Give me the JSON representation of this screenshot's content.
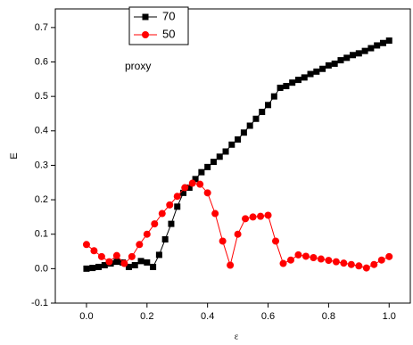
{
  "chart_data": {
    "type": "line",
    "x_label": "ε",
    "y_label": "E",
    "annotation": "proxy",
    "xlim": [
      -0.103,
      1.07
    ],
    "ylim": [
      -0.1,
      0.754
    ],
    "xticks": [
      {
        "value": 0,
        "label": "0.0"
      },
      0.2,
      0.4,
      0.6,
      0.8,
      {
        "value": 1,
        "label": "1.0"
      }
    ],
    "yticks": [
      -0.1,
      {
        "value": 0,
        "label": "0.0"
      },
      0.1,
      0.2,
      0.3,
      0.4,
      0.5,
      0.6,
      0.7
    ],
    "series": [
      {
        "name": "70",
        "color": "#000000",
        "marker": "square",
        "x": [
          0,
          0.02,
          0.04,
          0.06,
          0.08,
          0.1,
          0.12,
          0.14,
          0.16,
          0.18,
          0.2,
          0.22,
          0.24,
          0.26,
          0.28,
          0.3,
          0.32,
          0.34,
          0.36,
          0.38,
          0.4,
          0.42,
          0.44,
          0.46,
          0.48,
          0.5,
          0.52,
          0.54,
          0.56,
          0.58,
          0.6,
          0.62,
          0.64,
          0.66,
          0.68,
          0.7,
          0.72,
          0.74,
          0.76,
          0.78,
          0.8,
          0.82,
          0.84,
          0.86,
          0.88,
          0.9,
          0.92,
          0.94,
          0.96,
          0.98,
          1
        ],
        "values": [
          0,
          0.002,
          0.005,
          0.01,
          0.015,
          0.02,
          0.018,
          0.005,
          0.01,
          0.022,
          0.018,
          0.005,
          0.04,
          0.085,
          0.13,
          0.18,
          0.22,
          0.235,
          0.26,
          0.28,
          0.295,
          0.31,
          0.325,
          0.34,
          0.36,
          0.375,
          0.395,
          0.415,
          0.435,
          0.455,
          0.475,
          0.5,
          0.525,
          0.53,
          0.54,
          0.548,
          0.555,
          0.565,
          0.572,
          0.58,
          0.59,
          0.595,
          0.605,
          0.612,
          0.62,
          0.625,
          0.632,
          0.64,
          0.648,
          0.655,
          0.662
        ]
      },
      {
        "name": "50",
        "color": "#ff0000",
        "marker": "circle",
        "x": [
          0,
          0.025,
          0.05,
          0.075,
          0.1,
          0.125,
          0.15,
          0.175,
          0.2,
          0.225,
          0.25,
          0.275,
          0.3,
          0.325,
          0.35,
          0.375,
          0.4,
          0.425,
          0.45,
          0.475,
          0.5,
          0.525,
          0.55,
          0.575,
          0.6,
          0.625,
          0.65,
          0.675,
          0.7,
          0.725,
          0.75,
          0.775,
          0.8,
          0.825,
          0.85,
          0.875,
          0.9,
          0.925,
          0.95,
          0.975,
          1
        ],
        "values": [
          0.07,
          0.052,
          0.035,
          0.02,
          0.038,
          0.015,
          0.035,
          0.07,
          0.1,
          0.13,
          0.16,
          0.185,
          0.21,
          0.235,
          0.248,
          0.245,
          0.22,
          0.16,
          0.08,
          0.01,
          0.1,
          0.145,
          0.15,
          0.152,
          0.155,
          0.08,
          0.015,
          0.025,
          0.04,
          0.036,
          0.032,
          0.028,
          0.024,
          0.02,
          0.016,
          0.012,
          0.008,
          0.002,
          0.012,
          0.025,
          0.035
        ]
      }
    ]
  }
}
